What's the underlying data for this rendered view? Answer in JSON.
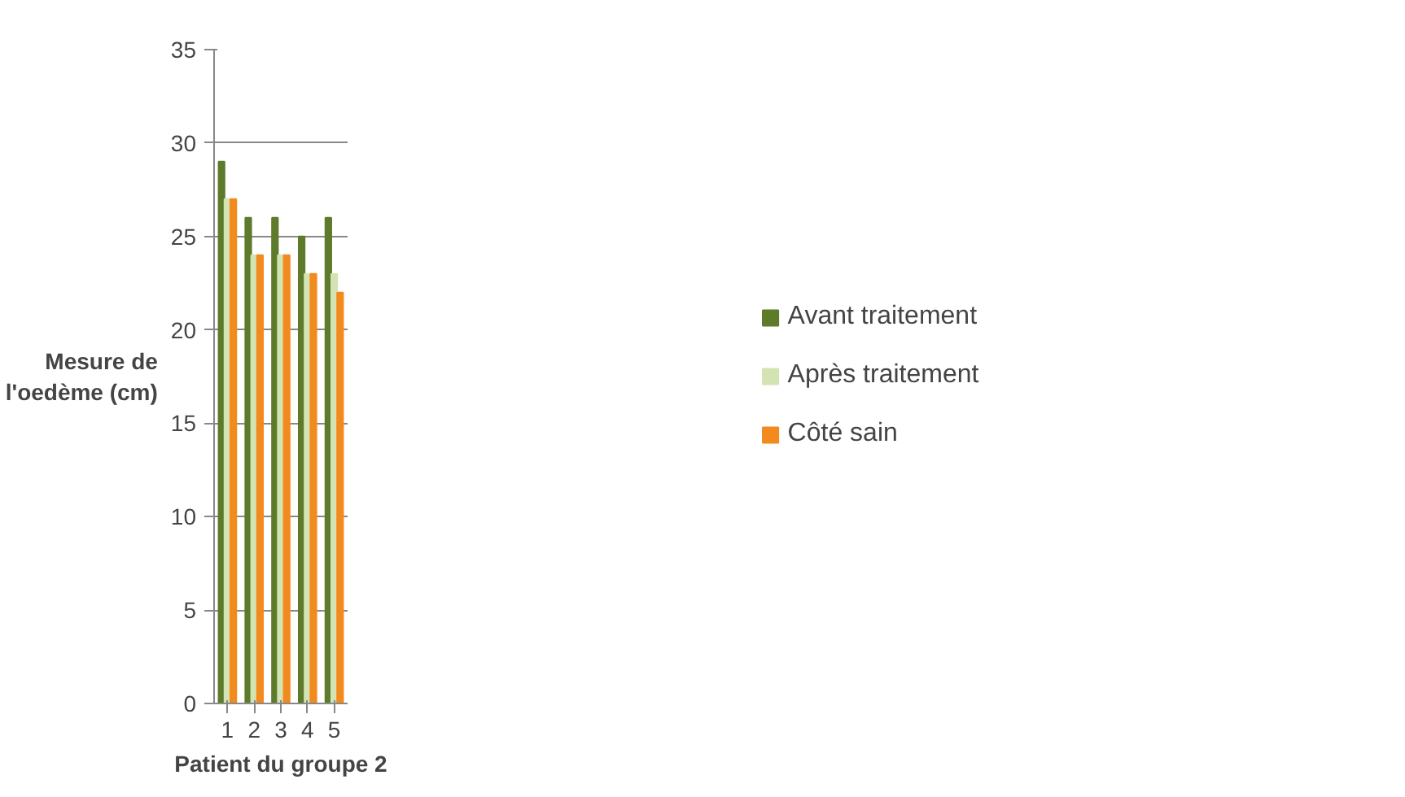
{
  "chart_data": {
    "type": "bar",
    "xlabel": "Patient du groupe 2",
    "ylabel": "Mesure de l'oedème (cm)",
    "categories": [
      "1",
      "2",
      "3",
      "4",
      "5"
    ],
    "series": [
      {
        "name": "Avant traitement",
        "color": "#5e7b2c",
        "values": [
          29,
          26,
          26,
          25,
          26
        ]
      },
      {
        "name": "Après traitement",
        "color": "#d3e4b2",
        "values": [
          27,
          24,
          24,
          23,
          23
        ]
      },
      {
        "name": "Côté sain",
        "color": "#f28a1e",
        "values": [
          27,
          24,
          24,
          23,
          22
        ]
      }
    ],
    "ylim": [
      0,
      35
    ],
    "yticks": [
      0,
      5,
      10,
      15,
      20,
      25,
      30,
      35
    ],
    "grid": "y",
    "legend": "right"
  }
}
